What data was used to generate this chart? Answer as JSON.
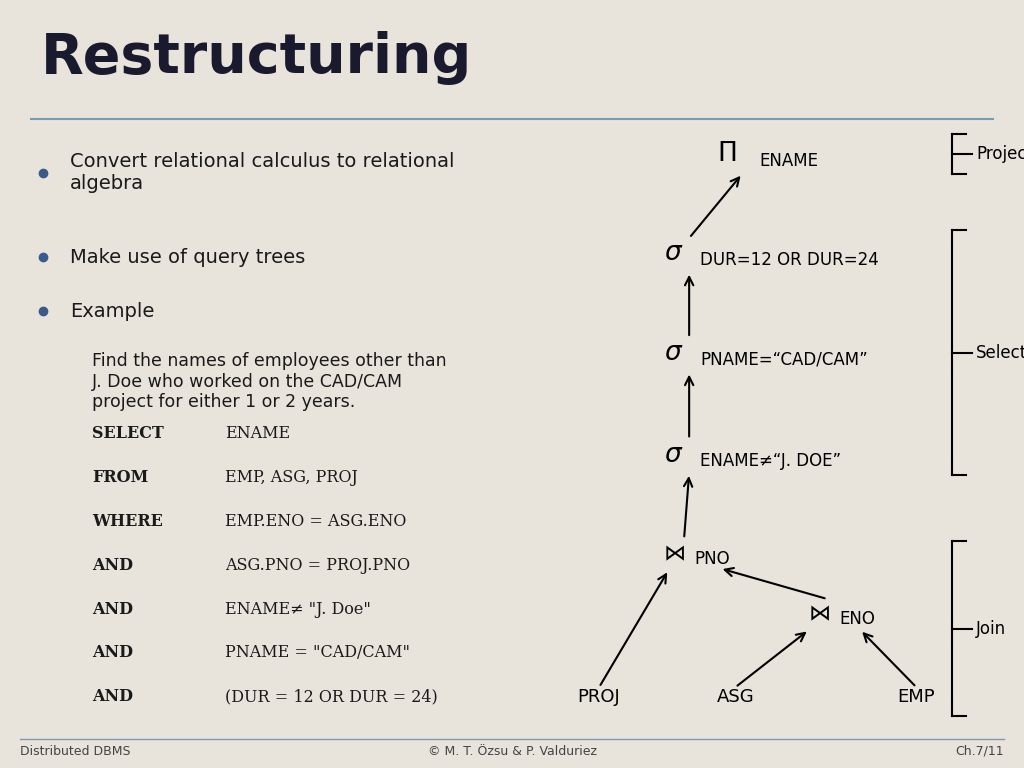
{
  "title": "Restructuring",
  "bg_color": "#e8e4dc",
  "title_color": "#1a1a2e",
  "bullet_points": [
    "Convert relational calculus to relational\nalgebra",
    "Make use of query trees",
    "Example"
  ],
  "example_text": "Find the names of employees other than\nJ. Doe who worked on the CAD/CAM\nproject for either 1 or 2 years.",
  "sql_keywords": [
    "SELECT",
    "FROM",
    "WHERE",
    "AND",
    "AND",
    "AND",
    "AND"
  ],
  "sql_values": [
    "ENAME",
    "EMP, ASG, PROJ",
    "EMP.ENO = ASG.ENO",
    "ASG.PNO = PROJ.PNO",
    "ENAME≠ \"J. Doe\"",
    "PNAME = \"CAD/CAM\"",
    "(DUR = 12 OR DUR = 24)"
  ],
  "footer_left": "Distributed DBMS",
  "footer_center": "© M. T. Özsu & P. Valduriez",
  "footer_right": "Ch.7/11"
}
